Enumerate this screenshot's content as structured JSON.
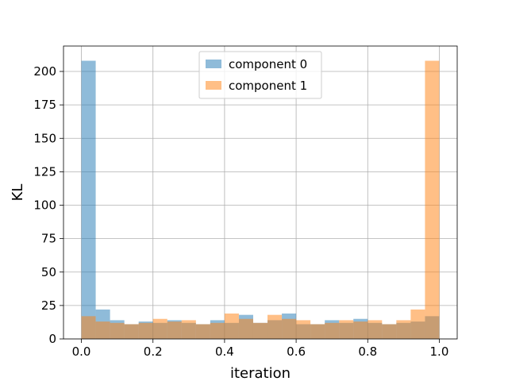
{
  "chart_data": {
    "type": "bar",
    "subtype": "overlapping histogram",
    "xlabel": "iteration",
    "ylabel": "KL",
    "xlim": [
      -0.05,
      1.05
    ],
    "ylim": [
      0,
      219
    ],
    "grid": true,
    "legend_position": "top-center",
    "bin_width": 0.04,
    "bin_starts": [
      0.0,
      0.04,
      0.08,
      0.12,
      0.16,
      0.2,
      0.24,
      0.28,
      0.32,
      0.36,
      0.4,
      0.44,
      0.48,
      0.52,
      0.56,
      0.6,
      0.64,
      0.68,
      0.72,
      0.76,
      0.8,
      0.84,
      0.88,
      0.92,
      0.96
    ],
    "x_ticks": [
      0.0,
      0.2,
      0.4,
      0.6,
      0.8,
      1.0
    ],
    "x_tick_labels": [
      "0.0",
      "0.2",
      "0.4",
      "0.6",
      "0.8",
      "1.0"
    ],
    "y_ticks": [
      0,
      25,
      50,
      75,
      100,
      125,
      150,
      175,
      200
    ],
    "y_tick_labels": [
      "0",
      "25",
      "50",
      "75",
      "100",
      "125",
      "150",
      "175",
      "200"
    ],
    "series": [
      {
        "name": "component 0",
        "color": "#1f77b4",
        "opacity": 0.5,
        "values": [
          208,
          22,
          14,
          11,
          13,
          12,
          14,
          12,
          11,
          14,
          12,
          18,
          12,
          14,
          19,
          11,
          11,
          14,
          12,
          15,
          12,
          11,
          12,
          13,
          17
        ]
      },
      {
        "name": "component 1",
        "color": "#ff7f0e",
        "opacity": 0.5,
        "values": [
          17,
          13,
          12,
          11,
          12,
          15,
          13,
          14,
          11,
          12,
          19,
          15,
          12,
          18,
          15,
          14,
          11,
          12,
          14,
          13,
          14,
          11,
          14,
          22,
          208
        ]
      }
    ]
  }
}
